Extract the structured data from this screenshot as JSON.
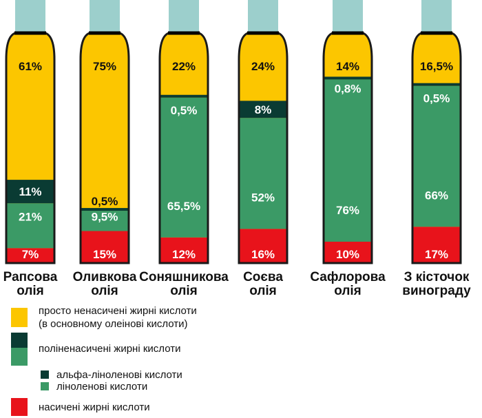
{
  "colors": {
    "mono": "#fcc600",
    "alpha": "#0a3b33",
    "linoleic": "#3b9a66",
    "saturated": "#e8131b",
    "cap": "#9ccfcc",
    "outline": "#1a1a1a"
  },
  "chart_data": {
    "type": "bar",
    "stacked": true,
    "title": "",
    "categories": [
      "Рапсова\nолія",
      "Оливкова\nолія",
      "Соняшникова\nолія",
      "Соєва\nолія",
      "Сафлорова\nолія",
      "З кісточок\nвинограду"
    ],
    "series": [
      {
        "name": "насичені жирні кислоти",
        "key": "saturated",
        "values": [
          7,
          15,
          12,
          16,
          10,
          17
        ],
        "labels": [
          "7%",
          "15%",
          "12%",
          "16%",
          "10%",
          "17%"
        ]
      },
      {
        "name": "лінолленові кислоти",
        "key": "linoleic",
        "values": [
          21,
          9.5,
          65.5,
          52,
          76,
          66
        ],
        "labels": [
          "21%",
          "9,5%",
          "65,5%",
          "52%",
          "76%",
          "66%"
        ]
      },
      {
        "name": "альфа-ліноленові кислоти",
        "key": "alpha",
        "values": [
          11,
          0.5,
          0.5,
          8,
          0.8,
          0.5
        ],
        "labels": [
          "11%",
          "0,5%",
          "0,5%",
          "8%",
          "0,8%",
          "0,5%"
        ]
      },
      {
        "name": "просто ненасичені жирні кислоти",
        "key": "mono",
        "values": [
          61,
          75,
          22,
          24,
          14,
          16.5
        ],
        "labels": [
          "61%",
          "75%",
          "22%",
          "24%",
          "14%",
          "16,5%"
        ]
      }
    ]
  },
  "legend": {
    "mono_line1": "просто ненасичені жирні кислоти",
    "mono_line2": "(в основному олеінові кислоти)",
    "poly": "поліненасичені жирні кислоти",
    "alpha": "альфа-ліноленові кислоти",
    "linoleic": "ліноленові кислоти",
    "saturated": "насичені жирні кислоти"
  }
}
